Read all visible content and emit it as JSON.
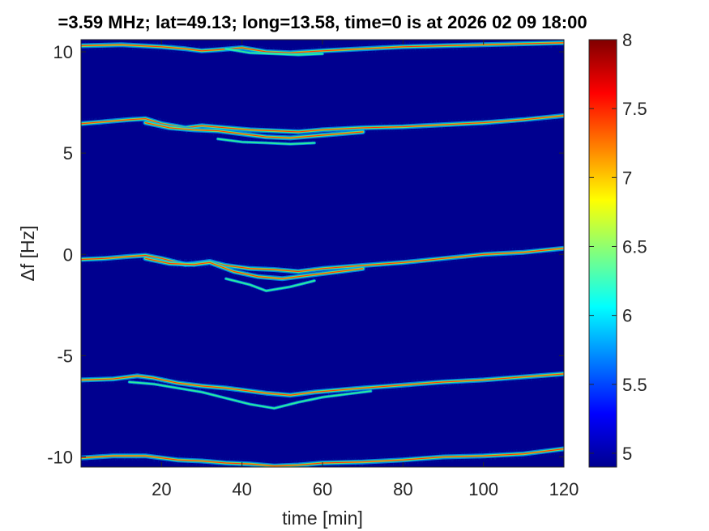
{
  "chart_data": {
    "type": "heatmap",
    "title": "=3.59 MHz;  lat=49.13; long=13.58, time=0 is at 2026 02 09 18:00",
    "xlabel": "time [min]",
    "ylabel": "Δf [Hz]",
    "xlim": [
      0,
      120
    ],
    "ylim": [
      -10.5,
      10.6
    ],
    "xticks": [
      "20",
      "40",
      "60",
      "80",
      "100",
      "120"
    ],
    "xtick_values": [
      20,
      40,
      60,
      80,
      100,
      120
    ],
    "yticks": [
      "-10",
      "-5",
      "0",
      "5",
      "10"
    ],
    "ytick_values": [
      -10,
      -5,
      0,
      5,
      10
    ],
    "colorbar": {
      "range": [
        4.9,
        8.0
      ],
      "ticks": [
        "5",
        "5.5",
        "6",
        "6.5",
        "7",
        "7.5",
        "8"
      ],
      "tick_values": [
        5,
        5.5,
        6,
        6.5,
        7,
        7.5,
        8
      ],
      "colormap": "jet"
    },
    "background_color": "#00008f",
    "traces": [
      {
        "x": [
          0,
          8,
          16,
          24,
          30,
          36,
          42,
          48,
          54,
          60,
          70,
          80,
          90,
          100,
          110,
          120
        ],
        "y": [
          -10.05,
          -9.95,
          -9.95,
          -10.15,
          -10.2,
          -10.3,
          -10.35,
          -10.45,
          -10.4,
          -10.3,
          -10.25,
          -10.15,
          -10.0,
          -9.95,
          -9.85,
          -9.6
        ]
      },
      {
        "x": [
          0,
          8,
          14,
          18,
          24,
          30,
          36,
          40,
          46,
          52,
          58,
          64,
          70,
          80,
          90,
          100,
          110,
          120
        ],
        "y": [
          -6.2,
          -6.15,
          -6.0,
          -6.1,
          -6.35,
          -6.5,
          -6.6,
          -6.7,
          -6.85,
          -6.95,
          -6.8,
          -6.7,
          -6.6,
          -6.45,
          -6.3,
          -6.2,
          -6.05,
          -5.9
        ]
      },
      {
        "x": [
          12,
          18,
          24,
          30,
          36,
          42,
          48,
          54,
          60,
          66,
          72
        ],
        "y": [
          -6.3,
          -6.4,
          -6.6,
          -6.8,
          -7.1,
          -7.4,
          -7.6,
          -7.3,
          -7.05,
          -6.9,
          -6.75
        ]
      },
      {
        "x": [
          0,
          6,
          12,
          16,
          20,
          26,
          32,
          36,
          42,
          48,
          54,
          60,
          70,
          80,
          90,
          100,
          110,
          120
        ],
        "y": [
          -0.25,
          -0.2,
          -0.1,
          -0.05,
          -0.2,
          -0.5,
          -0.35,
          -0.55,
          -0.7,
          -0.75,
          -0.85,
          -0.7,
          -0.55,
          -0.4,
          -0.2,
          0.0,
          0.1,
          0.3
        ]
      },
      {
        "x": [
          16,
          22,
          28,
          32,
          38,
          44,
          50,
          56,
          62,
          70
        ],
        "y": [
          -0.2,
          -0.45,
          -0.5,
          -0.4,
          -0.85,
          -1.1,
          -1.2,
          -1.05,
          -0.9,
          -0.7
        ]
      },
      {
        "x": [
          36,
          42,
          46,
          52,
          58
        ],
        "y": [
          -1.2,
          -1.5,
          -1.8,
          -1.6,
          -1.3
        ]
      },
      {
        "x": [
          0,
          6,
          12,
          16,
          20,
          26,
          30,
          36,
          42,
          48,
          54,
          60,
          70,
          80,
          90,
          100,
          110,
          120
        ],
        "y": [
          6.45,
          6.55,
          6.65,
          6.7,
          6.45,
          6.25,
          6.35,
          6.25,
          6.15,
          6.1,
          6.05,
          6.15,
          6.25,
          6.3,
          6.4,
          6.5,
          6.65,
          6.85
        ]
      },
      {
        "x": [
          16,
          22,
          28,
          34,
          40,
          46,
          52,
          58,
          64,
          70
        ],
        "y": [
          6.5,
          6.25,
          6.15,
          6.1,
          5.95,
          5.8,
          5.75,
          5.85,
          5.95,
          6.05
        ]
      },
      {
        "x": [
          34,
          40,
          46,
          52,
          58
        ],
        "y": [
          5.7,
          5.55,
          5.5,
          5.45,
          5.5
        ]
      },
      {
        "x": [
          0,
          10,
          20,
          26,
          30,
          34,
          40,
          46,
          52,
          60,
          70,
          80,
          90,
          100,
          110,
          120
        ],
        "y": [
          10.3,
          10.35,
          10.25,
          10.15,
          10.05,
          10.1,
          10.2,
          10.0,
          9.95,
          10.05,
          10.15,
          10.25,
          10.3,
          10.35,
          10.4,
          10.45
        ]
      },
      {
        "x": [
          36,
          42,
          48,
          54,
          60
        ],
        "y": [
          10.15,
          9.95,
          9.9,
          9.85,
          9.9
        ]
      }
    ]
  }
}
